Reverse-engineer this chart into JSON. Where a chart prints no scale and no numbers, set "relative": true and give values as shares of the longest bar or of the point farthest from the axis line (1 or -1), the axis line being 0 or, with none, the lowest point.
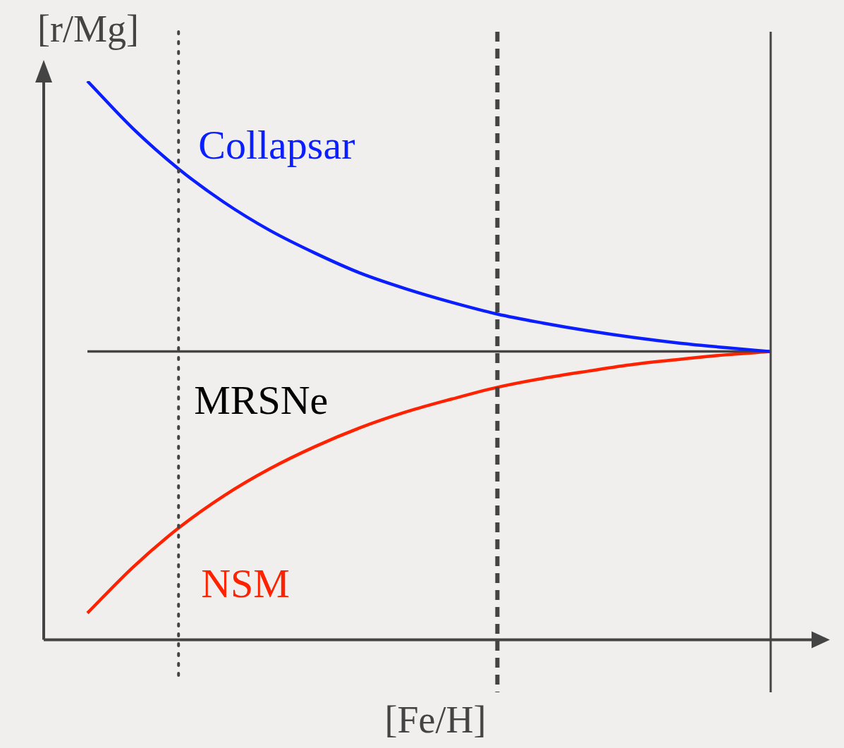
{
  "chart_data": {
    "type": "line",
    "relative": true,
    "xlabel": "[Fe/H]",
    "ylabel": "[r/Mg]",
    "legend": false,
    "marker": "none",
    "line_style": "solid",
    "categories": [
      null,
      null,
      null,
      null,
      null,
      null,
      null,
      null,
      null,
      null,
      null,
      null,
      null,
      null,
      null,
      null
    ],
    "series": [
      {
        "name": "Collapsar",
        "color": "#0a1eff",
        "values": [
          1.0,
          0.915,
          0.843,
          0.783,
          0.733,
          0.692,
          0.656,
          0.628,
          0.604,
          0.583,
          0.567,
          0.553,
          0.541,
          0.531,
          0.523,
          0.516
        ]
      },
      {
        "name": "MRSNe",
        "color": "#444444",
        "values": [
          0.516,
          0.516,
          0.516,
          0.516,
          0.516,
          0.516,
          0.516,
          0.516,
          0.516,
          0.516,
          0.516,
          0.516,
          0.516,
          0.516,
          0.516,
          0.516
        ]
      },
      {
        "name": "NSM",
        "color": "#ff2200",
        "values": [
          0.048,
          0.13,
          0.2,
          0.258,
          0.306,
          0.346,
          0.38,
          0.408,
          0.431,
          0.452,
          0.468,
          0.481,
          0.493,
          0.502,
          0.51,
          0.516
        ]
      }
    ]
  }
}
